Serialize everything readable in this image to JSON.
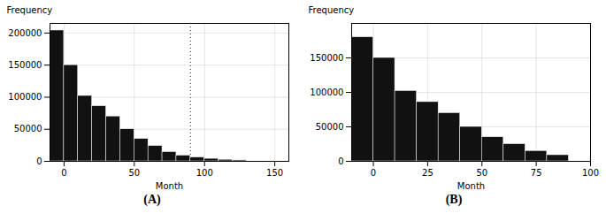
{
  "chart_data": [
    {
      "type": "histogram",
      "title": "(A)",
      "x_label": "Month",
      "y_label": "Frequency",
      "bins": [
        -10,
        0,
        10,
        20,
        30,
        40,
        50,
        60,
        70,
        80,
        90,
        100,
        110,
        120,
        130
      ],
      "values": [
        204000,
        150000,
        102000,
        86000,
        70000,
        50000,
        35000,
        24000,
        14500,
        9000,
        6000,
        4000,
        2500,
        1500
      ],
      "color": "#111111",
      "xlim": [
        -10,
        160
      ],
      "ylim": [
        0,
        215000
      ],
      "xticks": [
        0,
        50,
        100,
        150
      ],
      "yticks": [
        0,
        50000,
        100000,
        150000,
        200000
      ],
      "grid": true,
      "annotations": [
        {
          "x": 90,
          "line_style": "dotted"
        }
      ]
    },
    {
      "type": "histogram",
      "title": "(B)",
      "x_label": "Month",
      "y_label": "Frequency",
      "bins": [
        -10,
        0,
        10,
        20,
        30,
        40,
        50,
        60,
        70,
        80,
        90
      ],
      "values": [
        180000,
        150000,
        102000,
        86000,
        70000,
        50000,
        35000,
        25000,
        15000,
        9000
      ],
      "color": "#111111",
      "xlim": [
        -10,
        100
      ],
      "ylim": [
        0,
        200000
      ],
      "xticks": [
        0,
        25,
        50,
        75,
        100
      ],
      "yticks": [
        0,
        50000,
        100000,
        150000
      ],
      "grid": true
    }
  ]
}
